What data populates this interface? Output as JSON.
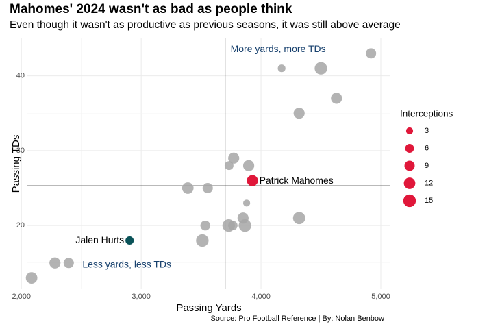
{
  "title": "Mahomes' 2024 wasn't as bad as people think",
  "subtitle": "Even though it wasn't as productive as previous seasons, it was still above average",
  "caption": "Source: Pro Football Reference | By: Nolan Benbow",
  "colors": {
    "highlight": "#e0173a",
    "hurts": "#0b5359",
    "other": "#a6a6a6",
    "quadrant_label": "#17406d"
  },
  "chart_data": {
    "type": "scatter",
    "xlabel": "Passing Yards",
    "ylabel": "Passing TDs",
    "xlim": [
      2050,
      5080
    ],
    "ylim": [
      11.5,
      45
    ],
    "x_ticks": [
      2000,
      3000,
      4000,
      5000
    ],
    "x_tick_labels": [
      "2,000",
      "3,000",
      "4,000",
      "5,000"
    ],
    "y_ticks": [
      20,
      30,
      40
    ],
    "y_tick_labels": [
      "20",
      "30",
      "40"
    ],
    "grid": true,
    "reference_lines": {
      "x": 3700,
      "y": 25.3
    },
    "quadrant_labels": [
      {
        "text": "More yards, more TDs",
        "x": 3700,
        "y": 43.5
      },
      {
        "text": "Less yards, less TDs",
        "x": 2880,
        "y": 14.7
      }
    ],
    "legend": {
      "title": "Interceptions",
      "position": "right",
      "values": [
        3,
        6,
        9,
        12,
        15
      ]
    },
    "points": [
      {
        "x": 4918,
        "y": 43,
        "int": 9
      },
      {
        "x": 4172,
        "y": 41,
        "int": 4
      },
      {
        "x": 4500,
        "y": 41,
        "int": 15
      },
      {
        "x": 4630,
        "y": 37,
        "int": 11
      },
      {
        "x": 4318,
        "y": 35,
        "int": 11
      },
      {
        "x": 3772,
        "y": 29,
        "int": 11
      },
      {
        "x": 3733,
        "y": 28,
        "int": 6
      },
      {
        "x": 3897,
        "y": 28,
        "int": 11
      },
      {
        "x": 3389,
        "y": 25,
        "int": 12
      },
      {
        "x": 3555,
        "y": 25,
        "int": 9
      },
      {
        "x": 3880,
        "y": 23,
        "int": 3
      },
      {
        "x": 4318,
        "y": 21,
        "int": 14
      },
      {
        "x": 3850,
        "y": 21,
        "int": 11
      },
      {
        "x": 3535,
        "y": 20,
        "int": 8
      },
      {
        "x": 3730,
        "y": 20,
        "int": 15
      },
      {
        "x": 3765,
        "y": 20,
        "int": 7
      },
      {
        "x": 3866,
        "y": 20,
        "int": 15
      },
      {
        "x": 3510,
        "y": 18,
        "int": 15
      },
      {
        "x": 2280,
        "y": 15,
        "int": 11
      },
      {
        "x": 2395,
        "y": 15,
        "int": 9
      },
      {
        "x": 2085,
        "y": 13,
        "int": 12
      },
      {
        "x": 2903,
        "y": 18,
        "int": 5,
        "label": "Jalen Hurts",
        "label_side": "left",
        "highlight": "hurts"
      },
      {
        "x": 3928,
        "y": 26,
        "int": 11,
        "label": "Patrick Mahomes",
        "label_side": "right",
        "highlight": "mahomes"
      }
    ]
  }
}
